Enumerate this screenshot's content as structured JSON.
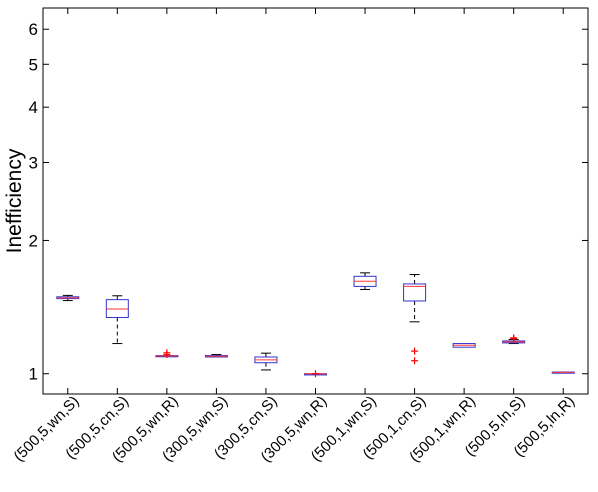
{
  "chart_data": {
    "type": "box",
    "title": "",
    "xlabel": "",
    "ylabel": "Inefficiency",
    "yscale": "log",
    "ylim": [
      0.9,
      6.7
    ],
    "yticks": [
      1,
      2,
      3,
      4,
      5,
      6
    ],
    "grid": false,
    "categories": [
      "(500,5,wn,S)",
      "(500,5,cn,S)",
      "(500,5,wn,R)",
      "(300,5,wn,S)",
      "(300,5,cn,S)",
      "(300,5,wn,R)",
      "(500,1,wn,S)",
      "(500,1,cn,S)",
      "(500,1,wn,R)",
      "(500,5,ln,S)",
      "(500,5,ln,R)"
    ],
    "boxes": [
      {
        "whisker_low": 1.463,
        "q1": 1.478,
        "median": 1.484,
        "q3": 1.492,
        "whisker_high": 1.503,
        "outliers": []
      },
      {
        "whisker_low": 1.17,
        "q1": 1.34,
        "median": 1.4,
        "q3": 1.47,
        "whisker_high": 1.5,
        "outliers": []
      },
      {
        "whisker_low": 1.095,
        "q1": 1.095,
        "median": 1.097,
        "q3": 1.099,
        "whisker_high": 1.099,
        "outliers": [
          1.115,
          1.105
        ]
      },
      {
        "whisker_low": 1.089,
        "q1": 1.091,
        "median": 1.095,
        "q3": 1.099,
        "whisker_high": 1.105,
        "outliers": []
      },
      {
        "whisker_low": 1.02,
        "q1": 1.059,
        "median": 1.075,
        "q3": 1.091,
        "whisker_high": 1.113,
        "outliers": []
      },
      {
        "whisker_low": 1.0,
        "q1": 1.0,
        "median": 1.0,
        "q3": 1.0,
        "whisker_high": 1.0,
        "outliers": [
          1.0
        ]
      },
      {
        "whisker_low": 1.55,
        "q1": 1.575,
        "median": 1.618,
        "q3": 1.66,
        "whisker_high": 1.69,
        "outliers": []
      },
      {
        "whisker_low": 1.31,
        "q1": 1.46,
        "median": 1.575,
        "q3": 1.595,
        "whisker_high": 1.675,
        "outliers": [
          1.125,
          1.07
        ]
      },
      {
        "whisker_low": 1.148,
        "q1": 1.148,
        "median": 1.16,
        "q3": 1.17,
        "whisker_high": 1.17,
        "outliers": []
      },
      {
        "whisker_low": 1.17,
        "q1": 1.174,
        "median": 1.18,
        "q3": 1.186,
        "whisker_high": 1.195,
        "outliers": [
          1.205,
          1.199
        ]
      },
      {
        "whisker_low": 1.005,
        "q1": 1.005,
        "median": 1.007,
        "q3": 1.009,
        "whisker_high": 1.009,
        "outliers": []
      }
    ],
    "colors": {
      "box": "#3333cc",
      "median": "#ff3333",
      "whisker": "#000000",
      "outlier": "#ff0000",
      "axes": "#000000"
    }
  }
}
